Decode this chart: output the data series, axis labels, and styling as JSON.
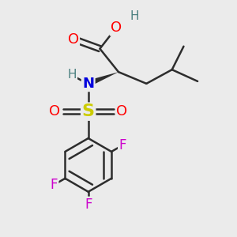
{
  "bg_color": "#ebebeb",
  "bond_color": "#2d2d2d",
  "bond_width": 1.8,
  "atom_colors": {
    "O": "#ff0000",
    "N": "#0000dd",
    "S": "#cccc00",
    "F": "#cc00cc",
    "H_gray": "#4a8080",
    "C": "#2d2d2d"
  },
  "font_size_atom": 13,
  "font_size_h": 11,
  "font_size_f": 12
}
